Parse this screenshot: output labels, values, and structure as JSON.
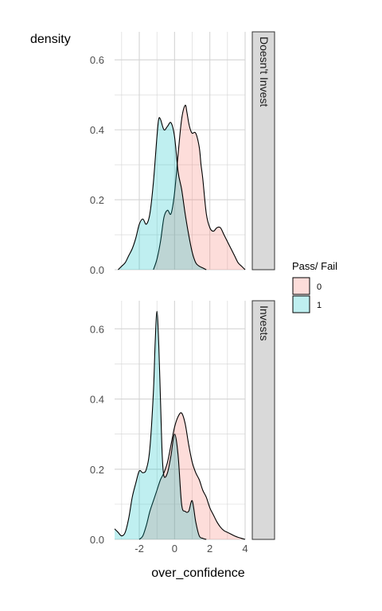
{
  "chart_data": {
    "type": "area",
    "title": "",
    "xlabel": "over_confidence",
    "ylabel": "density",
    "xlim": [
      -3.4,
      4
    ],
    "ylim": [
      0,
      0.68
    ],
    "x_ticks": [
      -2,
      0,
      2,
      4
    ],
    "x_tick_labels": [
      "-2",
      "0",
      "2",
      "4"
    ],
    "y_ticks": [
      0,
      0.2,
      0.4,
      0.6
    ],
    "y_tick_labels": [
      "0.0",
      "0.2",
      "0.4",
      "0.6"
    ],
    "grid": true,
    "legend": {
      "title": "Pass/ Fail",
      "position": "right",
      "entries": [
        {
          "label": "0",
          "fill": "#f8766d",
          "outline": "#000000"
        },
        {
          "label": "1",
          "fill": "#00bfc4",
          "outline": "#000000"
        }
      ]
    },
    "colors": {
      "fill_0": "#f8766d",
      "fill_1": "#00bfc4",
      "strip_bg": "#d9d9d9",
      "grid": "#d4d4d4"
    },
    "fill_opacity": 0.25,
    "panels": [
      {
        "strip": "Doesn't Invest",
        "series": [
          {
            "group": "0",
            "x": [
              -1.2,
              -1.0,
              -0.8,
              -0.6,
              -0.4,
              -0.2,
              0.0,
              0.2,
              0.4,
              0.6,
              0.7,
              0.8,
              0.9,
              1.0,
              1.2,
              1.4,
              1.5,
              1.6,
              1.8,
              2.0,
              2.2,
              2.4,
              2.6,
              2.8,
              3.0,
              3.2,
              3.4,
              3.6,
              3.8,
              4.0
            ],
            "y": [
              0.0,
              0.03,
              0.08,
              0.15,
              0.17,
              0.16,
              0.22,
              0.33,
              0.43,
              0.47,
              0.45,
              0.42,
              0.4,
              0.39,
              0.39,
              0.35,
              0.3,
              0.26,
              0.16,
              0.12,
              0.11,
              0.12,
              0.12,
              0.1,
              0.08,
              0.06,
              0.04,
              0.02,
              0.01,
              0.0
            ]
          },
          {
            "group": "1",
            "x": [
              -3.2,
              -3.0,
              -2.8,
              -2.6,
              -2.4,
              -2.2,
              -2.0,
              -1.8,
              -1.6,
              -1.4,
              -1.2,
              -1.0,
              -0.9,
              -0.8,
              -0.6,
              -0.4,
              -0.2,
              0.0,
              0.2,
              0.4,
              0.6,
              0.8,
              1.0,
              1.2,
              1.4,
              1.6,
              1.8
            ],
            "y": [
              0.0,
              0.01,
              0.02,
              0.04,
              0.06,
              0.09,
              0.13,
              0.145,
              0.13,
              0.16,
              0.25,
              0.38,
              0.43,
              0.43,
              0.4,
              0.41,
              0.42,
              0.38,
              0.28,
              0.23,
              0.16,
              0.1,
              0.05,
              0.02,
              0.01,
              0.005,
              0.0
            ]
          }
        ]
      },
      {
        "strip": "Invests",
        "series": [
          {
            "group": "0",
            "x": [
              -2.0,
              -1.8,
              -1.6,
              -1.4,
              -1.2,
              -1.0,
              -0.8,
              -0.6,
              -0.4,
              -0.2,
              0.0,
              0.2,
              0.4,
              0.6,
              0.8,
              1.0,
              1.2,
              1.4,
              1.6,
              1.8,
              2.0,
              2.2,
              2.4,
              2.6,
              2.8,
              3.0,
              3.2,
              3.4,
              3.6,
              3.8,
              4.0
            ],
            "y": [
              0.0,
              0.01,
              0.04,
              0.08,
              0.11,
              0.14,
              0.17,
              0.19,
              0.22,
              0.27,
              0.32,
              0.35,
              0.36,
              0.33,
              0.27,
              0.22,
              0.19,
              0.17,
              0.14,
              0.12,
              0.09,
              0.07,
              0.05,
              0.035,
              0.025,
              0.02,
              0.015,
              0.01,
              0.006,
              0.003,
              0.0
            ]
          },
          {
            "group": "1",
            "x": [
              -3.4,
              -3.2,
              -3.0,
              -2.8,
              -2.6,
              -2.4,
              -2.2,
              -2.0,
              -1.8,
              -1.6,
              -1.4,
              -1.2,
              -1.1,
              -1.0,
              -0.9,
              -0.8,
              -0.7,
              -0.6,
              -0.4,
              -0.2,
              0.0,
              0.2,
              0.4,
              0.6,
              0.8,
              1.0,
              1.2,
              1.4,
              1.6,
              1.8
            ],
            "y": [
              0.03,
              0.02,
              0.01,
              0.02,
              0.06,
              0.12,
              0.16,
              0.195,
              0.19,
              0.2,
              0.26,
              0.42,
              0.56,
              0.65,
              0.56,
              0.4,
              0.24,
              0.18,
              0.19,
              0.24,
              0.3,
              0.24,
              0.1,
              0.08,
              0.08,
              0.11,
              0.05,
              0.01,
              0.003,
              0.0
            ]
          }
        ]
      }
    ]
  }
}
